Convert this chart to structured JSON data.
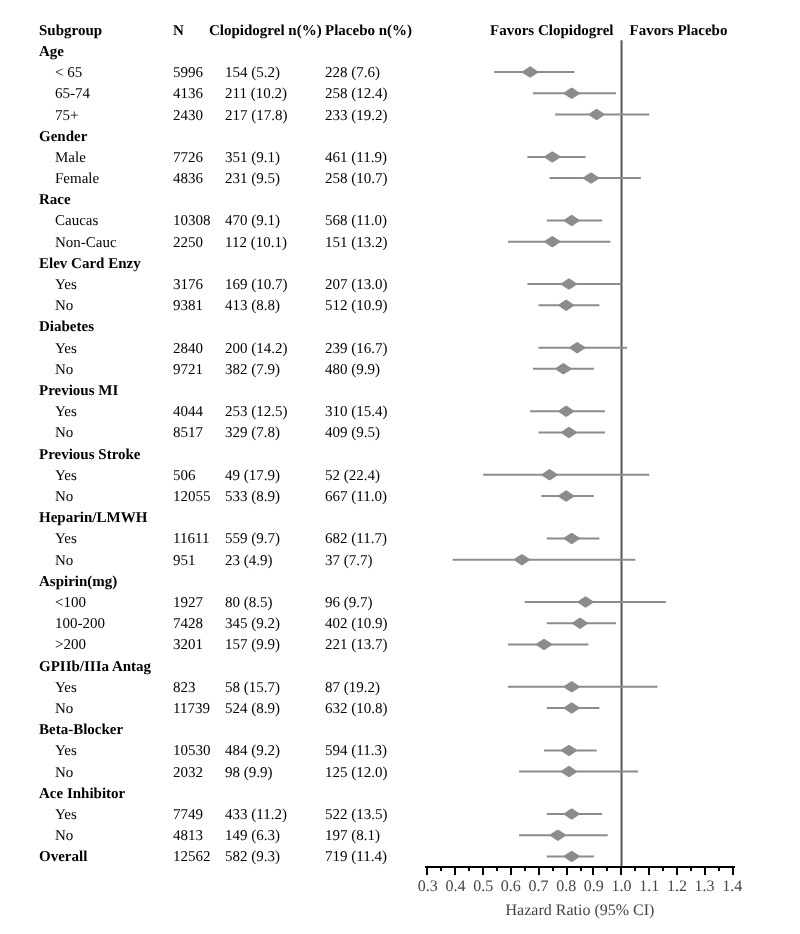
{
  "chart_data": [
    {
      "type": "other",
      "ylabel": "Subgroup",
      "categories": [
        "N",
        "Clopidogrel n(%)",
        "Placebo n(%)"
      ],
      "y_categories": [
        "Age",
        "< 65",
        "65-74",
        "75+",
        "Gender",
        "Male",
        "Female",
        "Race",
        "Caucas",
        "Non-Cauc",
        "Elev Card Enzy",
        "Yes",
        "No",
        "Diabetes",
        "Yes",
        "No",
        "Previous MI",
        "Yes",
        "No",
        "Previous Stroke",
        "Yes",
        "No",
        "Heparin/LMWH",
        "Yes",
        "No",
        "Aspirin(mg)",
        "<100",
        "100-200",
        ">200",
        "GPIIb/IIIa Antag",
        "Yes",
        "No",
        "Beta-Blocker",
        "Yes",
        "No",
        "Ace Inhibitor",
        "Yes",
        "No",
        "Overall"
      ],
      "cell_labels": [
        [
          null,
          null,
          null
        ],
        [
          "5996",
          "154 (5.2)",
          "228 (7.6)"
        ],
        [
          "4136",
          "211 (10.2)",
          "258 (12.4)"
        ],
        [
          "2430",
          "217 (17.8)",
          "233 (19.2)"
        ],
        [
          null,
          null,
          null
        ],
        [
          "7726",
          "351 (9.1)",
          "461 (11.9)"
        ],
        [
          "4836",
          "231 (9.5)",
          "258 (10.7)"
        ],
        [
          null,
          null,
          null
        ],
        [
          "10308",
          "470 (9.1)",
          "568 (11.0)"
        ],
        [
          "2250",
          "112 (10.1)",
          "151 (13.2)"
        ],
        [
          null,
          null,
          null
        ],
        [
          "3176",
          "169 (10.7)",
          "207 (13.0)"
        ],
        [
          "9381",
          "413 (8.8)",
          "512 (10.9)"
        ],
        [
          null,
          null,
          null
        ],
        [
          "2840",
          "200 (14.2)",
          "239 (16.7)"
        ],
        [
          "9721",
          "382 (7.9)",
          "480 (9.9)"
        ],
        [
          null,
          null,
          null
        ],
        [
          "4044",
          "253 (12.5)",
          "310 (15.4)"
        ],
        [
          "8517",
          "329 (7.8)",
          "409 (9.5)"
        ],
        [
          null,
          null,
          null
        ],
        [
          "506",
          "49 (17.9)",
          "52 (22.4)"
        ],
        [
          "12055",
          "533 (8.9)",
          "667 (11.0)"
        ],
        [
          null,
          null,
          null
        ],
        [
          "11611",
          "559 (9.7)",
          "682 (11.7)"
        ],
        [
          "951",
          "23 (4.9)",
          "37 (7.7)"
        ],
        [
          null,
          null,
          null
        ],
        [
          "1927",
          "80 (8.5)",
          "96 (9.7)"
        ],
        [
          "7428",
          "345 (9.2)",
          "402 (10.9)"
        ],
        [
          "3201",
          "157 (9.9)",
          "221 (13.7)"
        ],
        [
          null,
          null,
          null
        ],
        [
          "823",
          "58 (15.7)",
          "87 (19.2)"
        ],
        [
          "11739",
          "524 (8.9)",
          "632 (10.8)"
        ],
        [
          null,
          null,
          null
        ],
        [
          "10530",
          "484 (9.2)",
          "594 (11.3)"
        ],
        [
          "2032",
          "98 (9.9)",
          "125 (12.0)"
        ],
        [
          null,
          null,
          null
        ],
        [
          "7749",
          "433 (11.2)",
          "522 (13.5)"
        ],
        [
          "4813",
          "149 (6.3)",
          "197 (8.1)"
        ],
        [
          "12562",
          "582 (9.3)",
          "719 (11.4)"
        ]
      ]
    },
    {
      "type": "scatter",
      "orientation": "horizontal",
      "xlabel": "Hazard Ratio (95% CI)",
      "annotations": [
        "Favors Clopidogrel",
        "Favors Placebo"
      ],
      "categories": [
        null,
        null,
        null,
        null,
        null,
        null,
        null,
        null,
        null,
        null,
        null,
        null,
        null,
        null,
        null,
        null,
        null,
        null,
        null,
        null,
        null,
        null,
        null,
        null,
        null,
        null,
        null,
        null,
        null,
        null,
        null,
        null,
        null,
        null,
        null,
        null,
        null,
        null,
        null
      ],
      "series": [
        {
          "color": "#8c8c8c",
          "values": [
            null,
            0.67,
            0.82,
            0.91,
            null,
            0.75,
            0.89,
            null,
            0.82,
            0.75,
            null,
            0.81,
            0.8,
            null,
            0.84,
            0.79,
            null,
            0.8,
            0.81,
            null,
            0.74,
            0.8,
            null,
            0.82,
            0.64,
            null,
            0.87,
            0.85,
            0.72,
            null,
            0.82,
            0.82,
            null,
            0.81,
            0.81,
            null,
            0.82,
            0.77,
            0.82
          ],
          "errors": [
            null,
            [
              0.54,
              0.83
            ],
            [
              0.68,
              0.98
            ],
            [
              0.76,
              1.1
            ],
            null,
            [
              0.66,
              0.87
            ],
            [
              0.74,
              1.07
            ],
            null,
            [
              0.73,
              0.93
            ],
            [
              0.59,
              0.96
            ],
            null,
            [
              0.66,
              1.0
            ],
            [
              0.7,
              0.92
            ],
            null,
            [
              0.7,
              1.02
            ],
            [
              0.68,
              0.9
            ],
            null,
            [
              0.67,
              0.94
            ],
            [
              0.7,
              0.94
            ],
            null,
            [
              0.5,
              1.1
            ],
            [
              0.71,
              0.9
            ],
            null,
            [
              0.73,
              0.92
            ],
            [
              0.39,
              1.05
            ],
            null,
            [
              0.65,
              1.16
            ],
            [
              0.73,
              0.98
            ],
            [
              0.59,
              0.88
            ],
            null,
            [
              0.59,
              1.13
            ],
            [
              0.73,
              0.92
            ],
            null,
            [
              0.72,
              0.91
            ],
            [
              0.63,
              1.06
            ],
            null,
            [
              0.73,
              0.93
            ],
            [
              0.63,
              0.95
            ],
            [
              0.73,
              0.9
            ]
          ]
        }
      ],
      "xlim": [
        0.29,
        1.41
      ],
      "xticks": [
        0.3,
        {
          "value": 0.35,
          "label": null
        },
        0.4,
        {
          "value": 0.45,
          "label": null
        },
        0.5,
        {
          "value": 0.55,
          "label": null
        },
        0.6,
        {
          "value": 0.65,
          "label": null
        },
        0.7,
        {
          "value": 0.75,
          "label": null
        },
        0.8,
        {
          "value": 0.85,
          "label": null
        },
        0.9,
        {
          "value": 0.95,
          "label": null
        },
        {
          "value": 1,
          "label": "1.0"
        },
        {
          "value": 1.05,
          "label": null
        },
        1.1,
        {
          "value": 1.15,
          "label": null
        },
        1.2,
        {
          "value": 1.25,
          "label": null
        },
        1.3,
        {
          "value": 1.35,
          "label": null
        },
        1.4
      ],
      "ref_lines": [
        {
          "axis": "x",
          "value": 1,
          "color": "#555555"
        }
      ],
      "marker": "diamond"
    }
  ]
}
